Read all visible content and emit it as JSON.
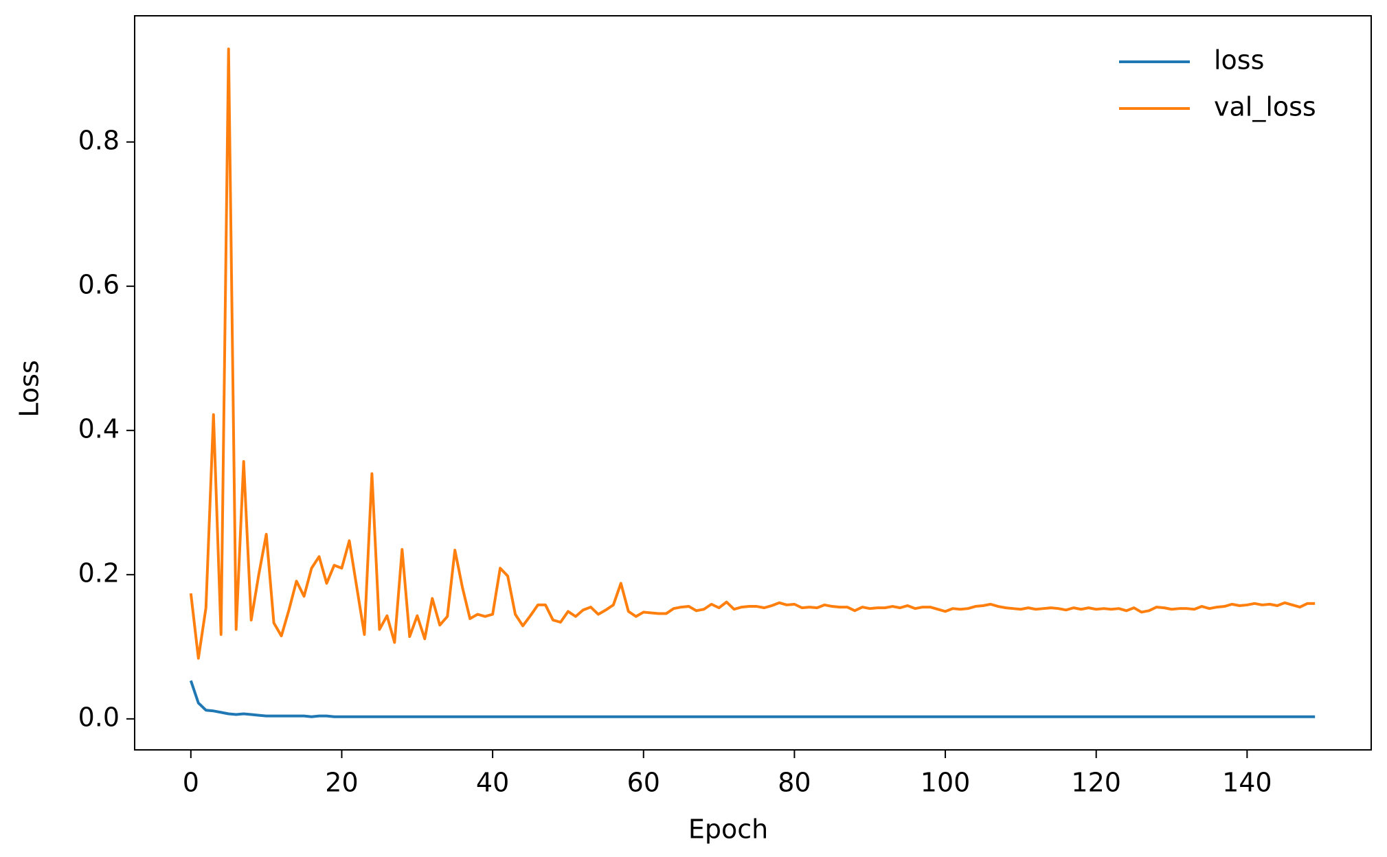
{
  "chart_data": {
    "type": "line",
    "xlabel": "Epoch",
    "ylabel": "Loss",
    "x": [
      0,
      1,
      2,
      3,
      4,
      5,
      6,
      7,
      8,
      9,
      10,
      11,
      12,
      13,
      14,
      15,
      16,
      17,
      18,
      19,
      20,
      21,
      22,
      23,
      24,
      25,
      26,
      27,
      28,
      29,
      30,
      31,
      32,
      33,
      34,
      35,
      36,
      37,
      38,
      39,
      40,
      41,
      42,
      43,
      44,
      45,
      46,
      47,
      48,
      49,
      50,
      51,
      52,
      53,
      54,
      55,
      56,
      57,
      58,
      59,
      60,
      61,
      62,
      63,
      64,
      65,
      66,
      67,
      68,
      69,
      70,
      71,
      72,
      73,
      74,
      75,
      76,
      77,
      78,
      79,
      80,
      81,
      82,
      83,
      84,
      85,
      86,
      87,
      88,
      89,
      90,
      91,
      92,
      93,
      94,
      95,
      96,
      97,
      98,
      99,
      100,
      101,
      102,
      103,
      104,
      105,
      106,
      107,
      108,
      109,
      110,
      111,
      112,
      113,
      114,
      115,
      116,
      117,
      118,
      119,
      120,
      121,
      122,
      123,
      124,
      125,
      126,
      127,
      128,
      129,
      130,
      131,
      132,
      133,
      134,
      135,
      136,
      137,
      138,
      139,
      140,
      141,
      142,
      143,
      144,
      145,
      146,
      147,
      148,
      149
    ],
    "series": [
      {
        "name": "loss",
        "color": "#1f77b4",
        "values": [
          0.053,
          0.022,
          0.012,
          0.011,
          0.009,
          0.007,
          0.006,
          0.007,
          0.006,
          0.005,
          0.004,
          0.004,
          0.004,
          0.004,
          0.004,
          0.004,
          0.003,
          0.004,
          0.004,
          0.003,
          0.003,
          0.003,
          0.003,
          0.003,
          0.003,
          0.003,
          0.003,
          0.003,
          0.003,
          0.003,
          0.003,
          0.003,
          0.003,
          0.003,
          0.003,
          0.003,
          0.003,
          0.003,
          0.003,
          0.003,
          0.003,
          0.003,
          0.003,
          0.003,
          0.003,
          0.003,
          0.003,
          0.003,
          0.003,
          0.003,
          0.003,
          0.003,
          0.003,
          0.003,
          0.003,
          0.003,
          0.003,
          0.003,
          0.003,
          0.003,
          0.003,
          0.003,
          0.003,
          0.003,
          0.003,
          0.003,
          0.003,
          0.003,
          0.003,
          0.003,
          0.003,
          0.003,
          0.003,
          0.003,
          0.003,
          0.003,
          0.003,
          0.003,
          0.003,
          0.003,
          0.003,
          0.003,
          0.003,
          0.003,
          0.003,
          0.003,
          0.003,
          0.003,
          0.003,
          0.003,
          0.003,
          0.003,
          0.003,
          0.003,
          0.003,
          0.003,
          0.003,
          0.003,
          0.003,
          0.003,
          0.003,
          0.003,
          0.003,
          0.003,
          0.003,
          0.003,
          0.003,
          0.003,
          0.003,
          0.003,
          0.003,
          0.003,
          0.003,
          0.003,
          0.003,
          0.003,
          0.003,
          0.003,
          0.003,
          0.003,
          0.003,
          0.003,
          0.003,
          0.003,
          0.003,
          0.003,
          0.003,
          0.003,
          0.003,
          0.003,
          0.003,
          0.003,
          0.003,
          0.003,
          0.003,
          0.003,
          0.003,
          0.003,
          0.003,
          0.003,
          0.003,
          0.003,
          0.003,
          0.003,
          0.003,
          0.003,
          0.003,
          0.003,
          0.003,
          0.003
        ]
      },
      {
        "name": "val_loss",
        "color": "#ff7f0e",
        "values": [
          0.174,
          0.084,
          0.154,
          0.422,
          0.117,
          0.929,
          0.124,
          0.357,
          0.137,
          0.2,
          0.256,
          0.133,
          0.115,
          0.151,
          0.191,
          0.17,
          0.209,
          0.225,
          0.188,
          0.213,
          0.209,
          0.247,
          0.182,
          0.117,
          0.34,
          0.124,
          0.143,
          0.106,
          0.235,
          0.114,
          0.143,
          0.111,
          0.167,
          0.13,
          0.142,
          0.234,
          0.182,
          0.139,
          0.145,
          0.142,
          0.145,
          0.209,
          0.198,
          0.145,
          0.129,
          0.143,
          0.158,
          0.158,
          0.137,
          0.134,
          0.149,
          0.142,
          0.151,
          0.155,
          0.145,
          0.151,
          0.158,
          0.188,
          0.149,
          0.142,
          0.148,
          0.147,
          0.146,
          0.146,
          0.153,
          0.155,
          0.156,
          0.15,
          0.152,
          0.159,
          0.154,
          0.162,
          0.152,
          0.155,
          0.156,
          0.156,
          0.154,
          0.157,
          0.161,
          0.158,
          0.159,
          0.154,
          0.155,
          0.154,
          0.158,
          0.156,
          0.155,
          0.155,
          0.15,
          0.155,
          0.153,
          0.154,
          0.154,
          0.156,
          0.154,
          0.157,
          0.153,
          0.155,
          0.155,
          0.152,
          0.149,
          0.153,
          0.152,
          0.153,
          0.156,
          0.157,
          0.159,
          0.156,
          0.154,
          0.153,
          0.152,
          0.154,
          0.152,
          0.153,
          0.154,
          0.153,
          0.151,
          0.154,
          0.152,
          0.154,
          0.152,
          0.153,
          0.152,
          0.153,
          0.15,
          0.154,
          0.148,
          0.15,
          0.155,
          0.154,
          0.152,
          0.153,
          0.153,
          0.152,
          0.156,
          0.153,
          0.155,
          0.156,
          0.159,
          0.157,
          0.158,
          0.16,
          0.158,
          0.159,
          0.157,
          0.161,
          0.158,
          0.155,
          0.16,
          0.16
        ]
      }
    ],
    "xlim": [
      -7.45,
      156.45
    ],
    "xticks": [
      0,
      20,
      40,
      60,
      80,
      100,
      120,
      140
    ],
    "ylim": [
      -0.043,
      0.975
    ],
    "yticks": [
      {
        "value": 0,
        "label": "0.0"
      },
      0.2,
      0.4,
      0.6,
      0.8
    ],
    "grid": false,
    "legend": "upper right"
  }
}
